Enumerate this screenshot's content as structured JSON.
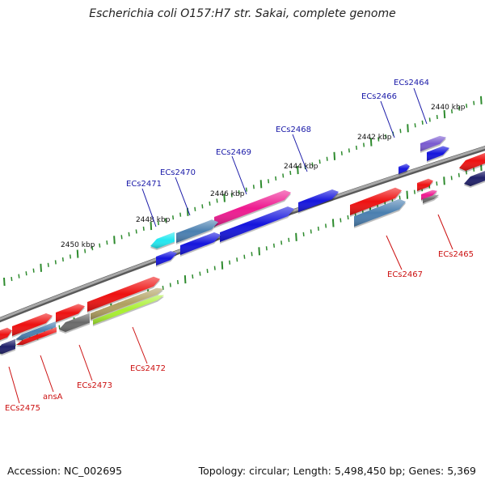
{
  "title": "Escherichia coli O157:H7 str. Sakai, complete genome",
  "footer": {
    "accession": "Accession: NC_002695",
    "summary": "Topology: circular; Length: 5,498,450 bp; Genes: 5,369"
  },
  "scale_labels": [
    "2440 kbp",
    "2442 kbp",
    "2444 kbp",
    "2446 kbp",
    "2448 kbp",
    "2450 kbp"
  ],
  "colors": {
    "backbone": "#8c8c8c",
    "tick": "#2e8b2e",
    "forward_label": "#1a1aa8",
    "reverse_label": "#cc1111",
    "red": "#ee1111",
    "blue": "#1515dd",
    "steel": "#4a7fb0",
    "pink": "#ee1a90",
    "cyan": "#22e8f0",
    "purple": "#7a5ad0",
    "navy": "#20206a",
    "gray": "#6a6a6a",
    "olive": "#b0a060",
    "lime": "#a8f030"
  },
  "forward_labels": [
    "ECs2464",
    "ECs2466",
    "ECs2468",
    "ECs2469",
    "ECs2470",
    "ECs2471"
  ],
  "reverse_labels": [
    "ECs2465",
    "ECs2467",
    "ECs2472",
    "ECs2473",
    "ansA",
    "ECs2475"
  ]
}
